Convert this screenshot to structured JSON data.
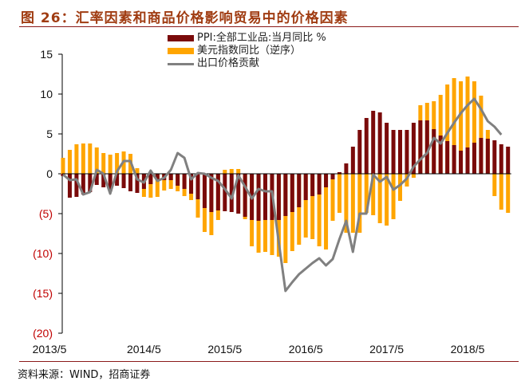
{
  "title": "图 26：汇率因素和商品价格影响贸易中的价格因素",
  "source": "资料来源：WIND，招商证券",
  "colors": {
    "ppi": "#7a0a0a",
    "usd": "#ffa500",
    "export": "#808080",
    "title": "#a03c12",
    "negative_tick": "#c00000"
  },
  "chart_data": {
    "type": "bar+line",
    "start_month": "2013/5",
    "x_tick_labels": [
      "2013/5",
      "2014/5",
      "2015/5",
      "2016/5",
      "2017/5",
      "2018/5"
    ],
    "y_tick_labels": [
      "15",
      "10",
      "5",
      "0",
      "(5)",
      "(10)",
      "(15)",
      "(20)"
    ],
    "y_ticks": [
      15,
      10,
      5,
      0,
      -5,
      -10,
      -15,
      -20
    ],
    "ylim": [
      -20,
      15
    ],
    "legend_position": "top-center",
    "series": [
      {
        "name": "PPI:全部工业品:当月同比 %",
        "type": "bar",
        "values": [
          -0.3,
          -3.0,
          -2.9,
          -2.6,
          -2.3,
          -1.4,
          -1.7,
          -2.2,
          -1.5,
          -1.8,
          -2.2,
          -2.4,
          -1.9,
          -1.3,
          -0.8,
          -0.8,
          -0.8,
          -1.5,
          -1.9,
          -2.5,
          -3.2,
          -4.3,
          -4.8,
          -4.6,
          -4.7,
          -4.8,
          -5.0,
          -5.4,
          -5.8,
          -5.9,
          -5.8,
          -5.8,
          -5.8,
          -5.3,
          -4.8,
          -4.2,
          -3.3,
          -2.8,
          -2.6,
          -1.7,
          -0.7,
          0.2,
          1.3,
          3.4,
          5.5,
          7.0,
          7.9,
          7.7,
          6.4,
          5.5,
          5.5,
          5.5,
          6.4,
          6.7,
          6.7,
          5.6,
          4.8,
          4.1,
          3.6,
          2.9,
          3.3,
          3.9,
          4.5,
          4.4,
          4.2,
          3.7,
          3.4
        ]
      },
      {
        "name": "美元指数同比（逆序）",
        "type": "bar",
        "values": [
          2.0,
          3.0,
          3.7,
          3.8,
          3.8,
          3.3,
          2.6,
          2.4,
          2.6,
          2.8,
          2.5,
          0.7,
          -2.9,
          -3.0,
          -2.9,
          -2.1,
          -1.9,
          -2.2,
          -2.8,
          -3.3,
          -5.5,
          -7.3,
          -7.7,
          -5.8,
          0.5,
          0.6,
          0.6,
          -5.7,
          -9.1,
          -9.9,
          -9.8,
          -10.2,
          -10.4,
          -11.2,
          -9.7,
          -8.9,
          -8.0,
          -8.2,
          -9.1,
          -9.5,
          -5.9,
          -4.9,
          -7.4,
          -7.4,
          -7.4,
          -4.9,
          -5.2,
          -6.2,
          -6.5,
          -5.7,
          -3.4,
          -1.6,
          -0.5,
          8.6,
          8.9,
          9.1,
          9.9,
          11.2,
          12.0,
          11.6,
          12.2,
          11.6,
          9.8,
          5.5,
          -2.8,
          -4.5,
          -4.9
        ]
      },
      {
        "name": "出口价格贡献",
        "type": "line",
        "values": [
          -0.1,
          -0.8,
          -0.7,
          -2.6,
          -2.3,
          0.5,
          0.0,
          -2.5,
          0.3,
          1.6,
          1.6,
          -0.7,
          -1.1,
          0.4,
          -0.9,
          -0.5,
          0.5,
          2.6,
          2.0,
          -0.7,
          0.1,
          0.0,
          -0.5,
          -0.9,
          -1.9,
          -3.1,
          -0.2,
          -1.6,
          -3.1,
          -1.9,
          -2.2,
          -2.2,
          -8.6,
          -14.7,
          -13.6,
          -12.6,
          -11.9,
          -11.2,
          -10.6,
          -11.5,
          -10.7,
          -8.2,
          -5.9,
          -9.8,
          -5.0,
          -5.0,
          -0.1,
          -1.0,
          -0.4,
          -2.0,
          -1.4,
          -0.6,
          0.9,
          1.8,
          2.6,
          4.5,
          3.8,
          5.1,
          6.4,
          7.6,
          8.6,
          9.4,
          8.1,
          6.6,
          5.9,
          4.9,
          null
        ]
      }
    ]
  }
}
